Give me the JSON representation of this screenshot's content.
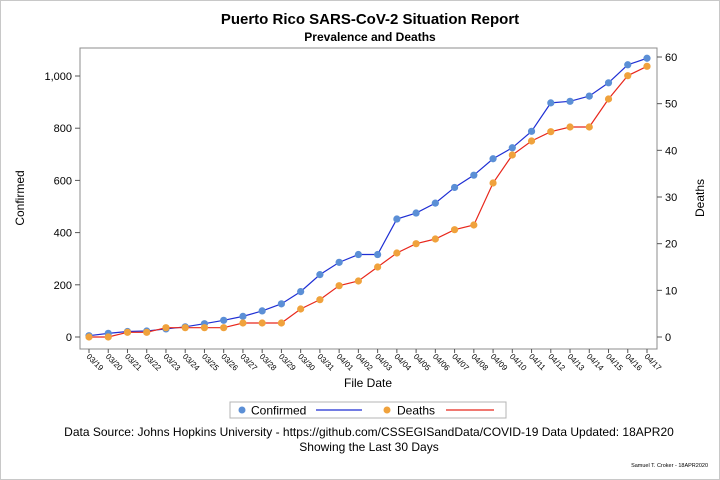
{
  "chart_data": {
    "type": "line",
    "title": "Puerto Rico SARS-CoV-2 Situation Report",
    "subtitle": "Prevalence and Deaths",
    "xlabel": "File Date",
    "ylabel_left": "Confirmed",
    "ylabel_right": "Deaths",
    "categories": [
      "03/19",
      "03/20",
      "03/21",
      "03/22",
      "03/23",
      "03/24",
      "03/25",
      "03/26",
      "03/27",
      "03/28",
      "03/29",
      "03/30",
      "03/31",
      "04/01",
      "04/02",
      "04/03",
      "04/04",
      "04/05",
      "04/06",
      "04/07",
      "04/08",
      "04/09",
      "04/10",
      "04/11",
      "04/12",
      "04/13",
      "04/14",
      "04/15",
      "04/16",
      "04/17"
    ],
    "yticks_left": [
      "0",
      "200",
      "400",
      "600",
      "800",
      "1,000"
    ],
    "yticks_right": [
      "0",
      "10",
      "20",
      "30",
      "40",
      "50",
      "60"
    ],
    "ylim_left": [
      0,
      1080
    ],
    "ylim_right": [
      0,
      61
    ],
    "series": [
      {
        "name": "Confirmed",
        "axis": "left",
        "marker_color": "#5b8fd6",
        "line_color": "#1f2fd4",
        "values": [
          5,
          14,
          21,
          23,
          31,
          39,
          51,
          64,
          79,
          100,
          127,
          174,
          239,
          286,
          316,
          316,
          452,
          475,
          513,
          573,
          620,
          683,
          725,
          788,
          897,
          903,
          923,
          974,
          1043,
          1068
        ]
      },
      {
        "name": "Deaths",
        "axis": "right",
        "marker_color": "#f0a23c",
        "line_color": "#e8271c",
        "values": [
          0,
          0,
          1,
          1,
          2,
          2,
          2,
          2,
          3,
          3,
          3,
          6,
          8,
          11,
          12,
          15,
          18,
          20,
          21,
          23,
          24,
          33,
          39,
          42,
          44,
          45,
          45,
          51,
          56,
          58
        ]
      }
    ],
    "legend": [
      {
        "label": "Confirmed"
      },
      {
        "label": "Deaths"
      }
    ],
    "legend_position": "bottom",
    "grid": false
  },
  "footnote": {
    "line1": "Data Source: Johns Hopkins University - https://github.com/CSSEGISandData/COVID-19 Data Updated: 18APR20",
    "line2": "Showing the Last 30 Days"
  },
  "credit": "Samuel T. Croker - 18APR2020"
}
